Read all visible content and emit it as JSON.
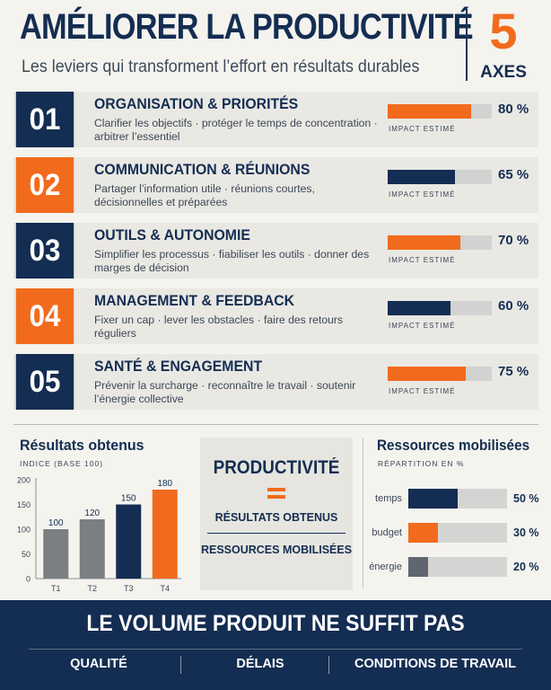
{
  "header": {
    "title": "AMÉLIORER LA PRODUCTIVITÉ",
    "subtitle": "Les leviers qui transforment l’effort en résultats durables",
    "axes_number": "5",
    "axes_label": "AXES"
  },
  "levers": [
    {
      "num": "01",
      "color": "navy",
      "title": "ORGANISATION & PRIORITÉS",
      "desc": "Clarifier les objectifs · protéger le temps de concentration · arbitrer l’essentiel",
      "impact_label": "IMPACT ESTIMÉ",
      "impact_pct": "80 %",
      "impact_value": 80,
      "bar_color": "#f26b1d"
    },
    {
      "num": "02",
      "color": "orange",
      "title": "COMMUNICATION & RÉUNIONS",
      "desc": "Partager l’information utile · réunions courtes, décisionnelles et préparées",
      "impact_label": "IMPACT ESTIMÉ",
      "impact_pct": "65 %",
      "impact_value": 65,
      "bar_color": "#142d52"
    },
    {
      "num": "03",
      "color": "navy",
      "title": "OUTILS & AUTONOMIE",
      "desc": "Simplifier les processus · fiabiliser les outils · donner des marges de décision",
      "impact_label": "IMPACT ESTIMÉ",
      "impact_pct": "70 %",
      "impact_value": 70,
      "bar_color": "#f26b1d"
    },
    {
      "num": "04",
      "color": "orange",
      "title": "MANAGEMENT & FEEDBACK",
      "desc": "Fixer un cap · lever les obstacles · faire des retours réguliers",
      "impact_label": "IMPACT ESTIMÉ",
      "impact_pct": "60 %",
      "impact_value": 60,
      "bar_color": "#142d52"
    },
    {
      "num": "05",
      "color": "navy",
      "title": "SANTÉ & ENGAGEMENT",
      "desc": "Prévenir la surcharge · reconnaître le travail · soutenir l’énergie collective",
      "impact_label": "IMPACT ESTIMÉ",
      "impact_pct": "75 %",
      "impact_value": 75,
      "bar_color": "#f26b1d"
    }
  ],
  "results": {
    "title": "Résultats obtenus",
    "subtitle": "INDICE (BASE 100)"
  },
  "formula": {
    "top": "PRODUCTIVITÉ",
    "numerator": "RÉSULTATS OBTENUS",
    "denominator": "RESSOURCES MOBILISÉES"
  },
  "resources": {
    "title": "Ressources mobilisées",
    "subtitle": "RÉPARTITION EN %",
    "rows": [
      {
        "label": "temps",
        "pct": "50 %",
        "value": 50,
        "color": "#142d52"
      },
      {
        "label": "budget",
        "pct": "30 %",
        "value": 30,
        "color": "#f26b1d"
      },
      {
        "label": "énergie",
        "pct": "20 %",
        "value": 20,
        "color": "#5f6670"
      }
    ]
  },
  "footer": {
    "title": "LE VOLUME PRODUIT NE SUFFIT PAS",
    "items": [
      "QUALITÉ",
      "DÉLAIS",
      "CONDITIONS DE TRAVAIL"
    ]
  },
  "chart_data": {
    "type": "bar",
    "categories": [
      "T1",
      "T2",
      "T3",
      "T4"
    ],
    "values": [
      100,
      120,
      150,
      180
    ],
    "colors": [
      "#7c7f82",
      "#7c7f82",
      "#142d52",
      "#f26b1d"
    ],
    "ylim": [
      0,
      200
    ],
    "yticks": [
      0,
      50,
      100,
      150,
      200
    ],
    "grid": false
  }
}
